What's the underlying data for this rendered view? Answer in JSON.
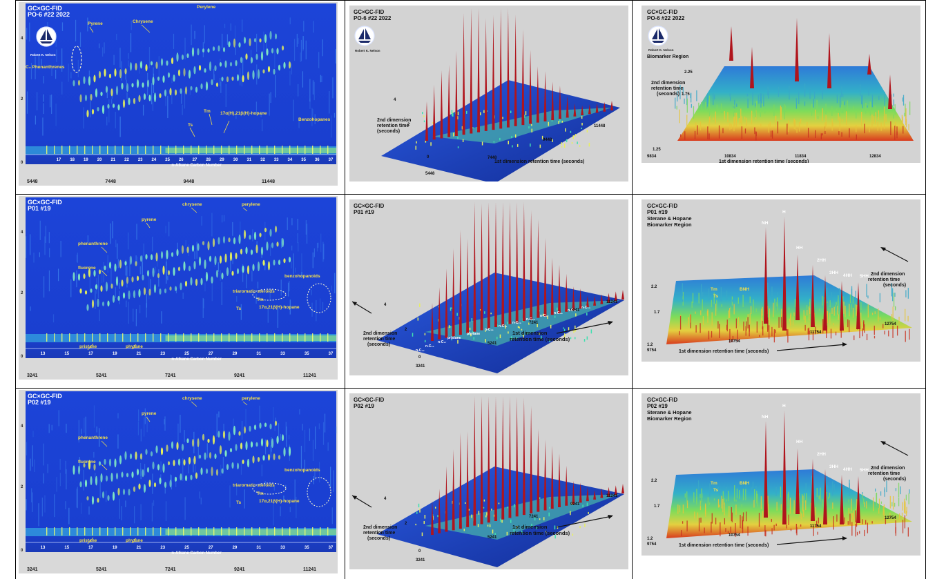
{
  "colors": {
    "contour_bg": "#1a3fd0",
    "surface_blue": "#2050c8",
    "peak_red": "#b0141c",
    "panel_gray": "#d3d3d3",
    "label_yellow": "#f5e04a",
    "label_white": "#ffffff",
    "grid_line": "#000000"
  },
  "rows": [
    {
      "contour": {
        "title": "GC×GC-FID",
        "sample": "PO-6 #22  2022",
        "logo_caption": "Robert K. Nelson",
        "annotations": [
          "Pyrene",
          "Chrysene",
          "Perylene",
          "C₃ Phenanthrenes",
          "17α(H),21β(H)-hopane",
          "Benzohopanes",
          "Ts",
          "Tm"
        ],
        "yticks": [
          "4",
          "2",
          "0"
        ],
        "carbon_numbers": [
          "17",
          "18",
          "19",
          "20",
          "21",
          "22",
          "23",
          "24",
          "25",
          "26",
          "27",
          "28",
          "29",
          "30",
          "31",
          "32",
          "33",
          "34",
          "35",
          "36",
          "37"
        ],
        "carbon_axis_label": "n-Alkane Carbon Number",
        "rt_ticks": [
          "5448",
          "7448",
          "9448",
          "11448"
        ]
      },
      "surface": {
        "title": "GC×GC-FID",
        "sample": "PO-6 #22  2022",
        "logo_caption": "Robert K. Nelson",
        "yticks": [
          "4",
          "2",
          "0"
        ],
        "xticks": [
          "5448",
          "7448",
          "9448",
          "11448"
        ],
        "ylabel": "2nd dimension retention time (seconds)",
        "xlabel": "1st dimension retention time (seconds)",
        "peak_labels": []
      },
      "biomarker": {
        "title": "GC×GC-FID",
        "sample": "PO-6 #22  2022",
        "logo_caption": "Robert K. Nelson",
        "region": "Biomarker Region",
        "yticks": [
          "2.25",
          "1.75",
          "1.25"
        ],
        "xticks": [
          "9834",
          "10834",
          "11834",
          "12834"
        ],
        "ylabel": "2nd dimension retention time (seconds)",
        "xlabel": "1st dimension retention time (seconds)",
        "peak_labels": []
      }
    },
    {
      "contour": {
        "title": "GC×GC-FID",
        "sample": "P01 #19",
        "annotations": [
          "chrysene",
          "perylene",
          "pyrene",
          "phenanthrene",
          "fluorene",
          "triaromatic steroids",
          "benzohopanoids",
          "Tm",
          "Ts",
          "17α,21β(H)-hopane",
          "pristane",
          "phytane"
        ],
        "yticks": [
          "4",
          "2",
          "0"
        ],
        "carbon_numbers": [
          "13",
          "15",
          "17",
          "19",
          "21",
          "23",
          "25",
          "27",
          "29",
          "31",
          "33",
          "35",
          "37"
        ],
        "carbon_axis_label": "n-Alkane Carbon Number",
        "rt_ticks": [
          "3241",
          "5241",
          "7241",
          "9241",
          "11241"
        ]
      },
      "surface": {
        "title": "GC×GC-FID",
        "sample": "P01 #19",
        "yticks": [
          "4",
          "2",
          "0"
        ],
        "xticks": [
          "3241",
          "5241",
          "7241",
          "9241",
          "11241"
        ],
        "ylabel": "2nd dimension retention time (seconds)",
        "xlabel": "1st dimension retention time (seconds)",
        "peak_labels": [
          "n-C₁₃",
          "n-C₁₅",
          "n-C₁₇",
          "pristane",
          "phytane",
          "n-C₁₉",
          "n-C₂₁",
          "n-C₂₃",
          "n-C₂₅",
          "n-C₂₇",
          "n-C₂₉",
          "n-C₃₁",
          "n-C₃₃"
        ]
      },
      "biomarker": {
        "title": "GC×GC-FID",
        "sample": "P01 #19",
        "region": "Sterane & Hopane Biomarker Region",
        "yticks": [
          "2.2",
          "1.7",
          "1.2"
        ],
        "xticks": [
          "9754",
          "10754",
          "11754",
          "12754"
        ],
        "ylabel": "2nd dimension retention time (seconds)",
        "xlabel": "1st dimension retention time (seconds)",
        "peak_labels": [
          "NH",
          "H",
          "HH",
          "2HH",
          "3HH",
          "4HH",
          "5HH",
          "Tm",
          "Ts",
          "BNH"
        ]
      }
    },
    {
      "contour": {
        "title": "GC×GC-FID",
        "sample": "P02 #19",
        "annotations": [
          "chrysene",
          "perylene",
          "pyrene",
          "phenanthrene",
          "fluorene",
          "triaromatic steroids",
          "benzohopanoids",
          "Tm",
          "Ts",
          "17α,21β(H)-hopane",
          "pristane",
          "phytane"
        ],
        "yticks": [
          "4",
          "2",
          "0"
        ],
        "carbon_numbers": [
          "13",
          "15",
          "17",
          "19",
          "21",
          "23",
          "25",
          "27",
          "29",
          "31",
          "33",
          "35",
          "37"
        ],
        "carbon_axis_label": "n-Alkane Carbon Number",
        "rt_ticks": [
          "3241",
          "5241",
          "7241",
          "9241",
          "11241"
        ]
      },
      "surface": {
        "title": "GC×GC-FID",
        "sample": "P02 #19",
        "yticks": [
          "4",
          "2",
          "0"
        ],
        "xticks": [
          "3241",
          "5241",
          "7241",
          "9241",
          "11241"
        ],
        "ylabel": "2nd dimension retention time (seconds)",
        "xlabel": "1st dimension retention time (seconds)",
        "peak_labels": []
      },
      "biomarker": {
        "title": "GC×GC-FID",
        "sample": "P02 #19",
        "region": "Sterane & Hopane Biomarker Region",
        "yticks": [
          "2.2",
          "1.7",
          "1.2"
        ],
        "xticks": [
          "9754",
          "10754",
          "11754",
          "12754"
        ],
        "ylabel": "2nd dimension retention time (seconds)",
        "xlabel": "1st dimension retention time (seconds)",
        "peak_labels": [
          "NH",
          "H",
          "HH",
          "2HH",
          "3HH",
          "4HH",
          "5HH",
          "Tm",
          "Ts",
          "BNH"
        ]
      }
    }
  ],
  "chart_data": [
    {
      "type": "heatmap",
      "title": "GC×GC-FID",
      "subtitle": "PO-6 #22  2022",
      "xlabel": "n-Alkane Carbon Number",
      "x_ticks": [
        5448,
        7448,
        9448,
        11448
      ],
      "y_ticks": [
        0,
        2,
        4
      ],
      "carbon_numbers": [
        17,
        18,
        19,
        20,
        21,
        22,
        23,
        24,
        25,
        26,
        27,
        28,
        29,
        30,
        31,
        32,
        33,
        34,
        35,
        36,
        37
      ]
    },
    {
      "type": "surface",
      "title": "GC×GC-FID",
      "subtitle": "PO-6 #22  2022",
      "xlabel": "1st dimension retention time (seconds)",
      "ylabel": "2nd dimension retention time (seconds)",
      "x_ticks": [
        5448,
        7448,
        9448,
        11448
      ],
      "y_ticks": [
        0,
        2,
        4
      ]
    },
    {
      "type": "surface",
      "title": "GC×GC-FID",
      "subtitle": "PO-6 #22  2022",
      "region": "Biomarker Region",
      "xlabel": "1st dimension retention time (seconds)",
      "ylabel": "2nd dimension retention time (seconds)",
      "x_ticks": [
        9834,
        10834,
        11834,
        12834
      ],
      "y_ticks": [
        1.25,
        1.75,
        2.25
      ]
    },
    {
      "type": "heatmap",
      "title": "GC×GC-FID",
      "subtitle": "P01 #19",
      "xlabel": "n-Alkane Carbon Number",
      "x_ticks": [
        3241,
        5241,
        7241,
        9241,
        11241
      ],
      "y_ticks": [
        0,
        2,
        4
      ],
      "carbon_numbers": [
        13,
        15,
        17,
        19,
        21,
        23,
        25,
        27,
        29,
        31,
        33,
        35,
        37
      ]
    },
    {
      "type": "surface",
      "title": "GC×GC-FID",
      "subtitle": "P01 #19",
      "xlabel": "1st dimension retention time (seconds)",
      "ylabel": "2nd dimension retention time (seconds)",
      "x_ticks": [
        3241,
        5241,
        7241,
        9241,
        11241
      ],
      "y_ticks": [
        0,
        2,
        4
      ]
    },
    {
      "type": "surface",
      "title": "GC×GC-FID",
      "subtitle": "P01 #19",
      "region": "Sterane & Hopane Biomarker Region",
      "xlabel": "1st dimension retention time (seconds)",
      "ylabel": "2nd dimension retention time (seconds)",
      "x_ticks": [
        9754,
        10754,
        11754,
        12754
      ],
      "y_ticks": [
        1.2,
        1.7,
        2.2
      ]
    },
    {
      "type": "heatmap",
      "title": "GC×GC-FID",
      "subtitle": "P02 #19",
      "xlabel": "n-Alkane Carbon Number",
      "x_ticks": [
        3241,
        5241,
        7241,
        9241,
        11241
      ],
      "y_ticks": [
        0,
        2,
        4
      ],
      "carbon_numbers": [
        13,
        15,
        17,
        19,
        21,
        23,
        25,
        27,
        29,
        31,
        33,
        35,
        37
      ]
    },
    {
      "type": "surface",
      "title": "GC×GC-FID",
      "subtitle": "P02 #19",
      "xlabel": "1st dimension retention time (seconds)",
      "ylabel": "2nd dimension retention time (seconds)",
      "x_ticks": [
        3241,
        5241,
        7241,
        9241,
        11241
      ],
      "y_ticks": [
        0,
        2,
        4
      ]
    },
    {
      "type": "surface",
      "title": "GC×GC-FID",
      "subtitle": "P02 #19",
      "region": "Sterane & Hopane Biomarker Region",
      "xlabel": "1st dimension retention time (seconds)",
      "ylabel": "2nd dimension retention time (seconds)",
      "x_ticks": [
        9754,
        10754,
        11754,
        12754
      ],
      "y_ticks": [
        1.2,
        1.7,
        2.2
      ]
    }
  ]
}
